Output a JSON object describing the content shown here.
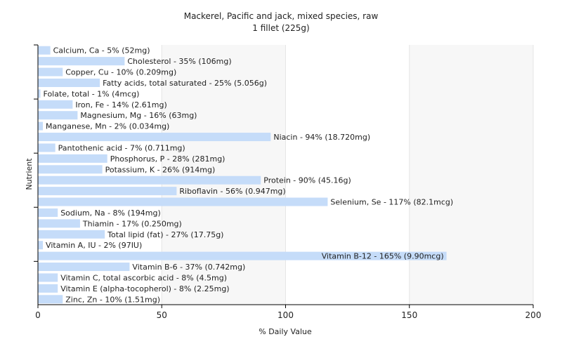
{
  "chart_data": {
    "type": "bar",
    "orientation": "horizontal",
    "title": "Mackerel, Pacific and jack, mixed species, raw",
    "subtitle": "1 fillet (225g)",
    "xlabel": "% Daily Value",
    "ylabel": "Nutrient",
    "xlim": [
      0,
      200
    ],
    "xticks": [
      0,
      50,
      100,
      150,
      200
    ],
    "grid": true,
    "bar_color": "#c5dcf9",
    "categories": [
      "Calcium, Ca",
      "Cholesterol",
      "Copper, Cu",
      "Fatty acids, total saturated",
      "Folate, total",
      "Iron, Fe",
      "Magnesium, Mg",
      "Manganese, Mn",
      "Niacin",
      "Pantothenic acid",
      "Phosphorus, P",
      "Potassium, K",
      "Protein",
      "Riboflavin",
      "Selenium, Se",
      "Sodium, Na",
      "Thiamin",
      "Total lipid (fat)",
      "Vitamin A, IU",
      "Vitamin B-12",
      "Vitamin B-6",
      "Vitamin C, total ascorbic acid",
      "Vitamin E (alpha-tocopherol)",
      "Zinc, Zn"
    ],
    "values": [
      5,
      35,
      10,
      25,
      1,
      14,
      16,
      2,
      94,
      7,
      28,
      26,
      90,
      56,
      117,
      8,
      17,
      27,
      2,
      165,
      37,
      8,
      8,
      10
    ],
    "labels": [
      "Calcium, Ca - 5% (52mg)",
      "Cholesterol - 35% (106mg)",
      "Copper, Cu - 10% (0.209mg)",
      "Fatty acids, total saturated - 25% (5.056g)",
      "Folate, total - 1% (4mcg)",
      "Iron, Fe - 14% (2.61mg)",
      "Magnesium, Mg - 16% (63mg)",
      "Manganese, Mn - 2% (0.034mg)",
      "Niacin - 94% (18.720mg)",
      "Pantothenic acid - 7% (0.711mg)",
      "Phosphorus, P - 28% (281mg)",
      "Potassium, K - 26% (914mg)",
      "Protein - 90% (45.16g)",
      "Riboflavin - 56% (0.947mg)",
      "Selenium, Se - 117% (82.1mcg)",
      "Sodium, Na - 8% (194mg)",
      "Thiamin - 17% (0.250mg)",
      "Total lipid (fat) - 27% (17.75g)",
      "Vitamin A, IU - 2% (97IU)",
      "Vitamin B-12 - 165% (9.90mcg)",
      "Vitamin B-6 - 37% (0.742mg)",
      "Vitamin C, total ascorbic acid - 8% (4.5mg)",
      "Vitamin E (alpha-tocopherol) - 8% (2.25mg)",
      "Zinc, Zn - 10% (1.51mg)"
    ]
  }
}
